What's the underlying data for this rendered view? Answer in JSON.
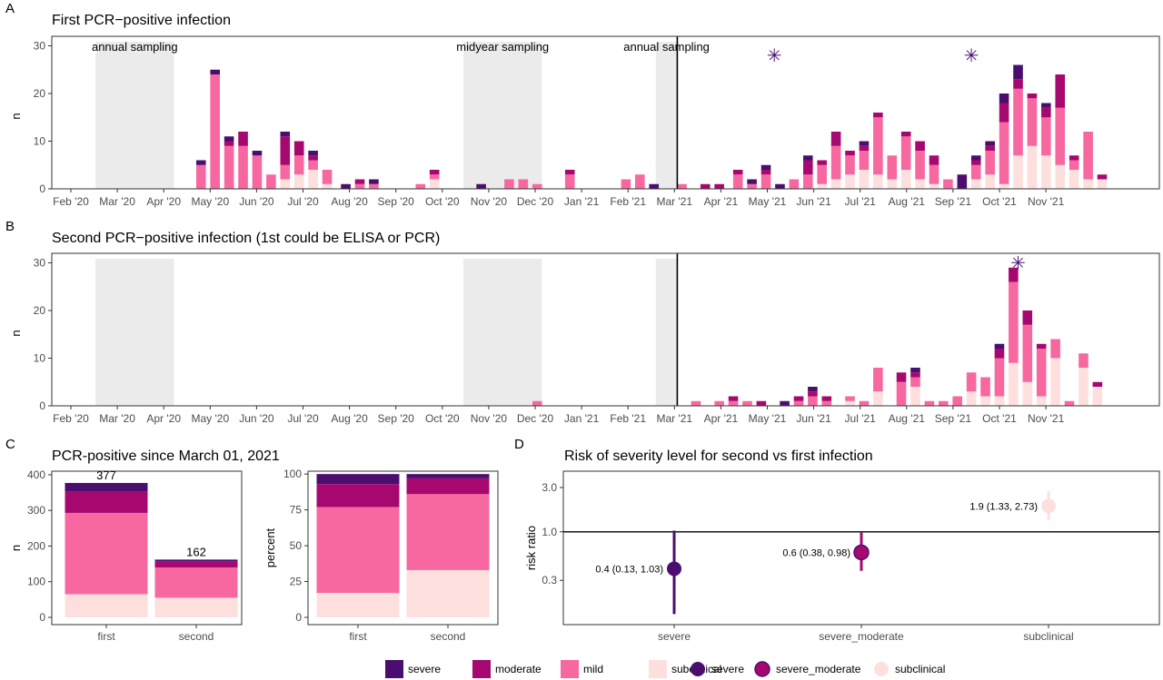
{
  "colors": {
    "severe": "#4a0f6e",
    "moderate": "#a6086f",
    "mild": "#f768a1",
    "subclinical": "#fde0dd",
    "shade": "#ebebeb",
    "border": "#333333",
    "grid": "#000000"
  },
  "severity_order": [
    "subclinical",
    "mild",
    "moderate",
    "severe"
  ],
  "legend": {
    "bars": [
      "severe",
      "moderate",
      "mild",
      "subclinical"
    ],
    "points": [
      "severe",
      "severe_moderate",
      "subclinical"
    ]
  },
  "chart_data": [
    {
      "id": "A",
      "type": "bar",
      "stacked": true,
      "panel_label": "A",
      "title": "First PCR−positive infection",
      "ylabel": "n",
      "xlabel": "",
      "ylim": [
        0,
        32
      ],
      "yticks": [
        0,
        10,
        20,
        30
      ],
      "x_ticks": [
        "Feb '20",
        "Mar '20",
        "Apr '20",
        "May '20",
        "Jun '20",
        "Jul '20",
        "Aug '20",
        "Sep '20",
        "Oct '20",
        "Nov '20",
        "Dec '20",
        "Jan '21",
        "Feb '21",
        "Mar '21",
        "Apr '21",
        "May '21",
        "Jun '21",
        "Jul '21",
        "Aug '21",
        "Sep '21",
        "Oct '21",
        "Nov '21"
      ],
      "x_unit": "week index (0 = week of Feb 1, 2020)",
      "shaded_periods": [
        {
          "start": 4.2,
          "end": 12.6,
          "label": "annual sampling"
        },
        {
          "start": 43.6,
          "end": 52,
          "label": "midyear sampling"
        },
        {
          "start": 64.2,
          "end": 66.5,
          "label": "annual sampling"
        }
      ],
      "vline": 66.5,
      "stars": [
        {
          "week": 76.9,
          "y": 28
        },
        {
          "week": 98,
          "y": 28
        }
      ],
      "bars": [
        {
          "week": 15.5,
          "subclinical": 0,
          "mild": 5,
          "moderate": 0,
          "severe": 1
        },
        {
          "week": 17,
          "subclinical": 0,
          "mild": 24,
          "moderate": 0,
          "severe": 1
        },
        {
          "week": 18.5,
          "subclinical": 0,
          "mild": 9,
          "moderate": 1,
          "severe": 1
        },
        {
          "week": 20,
          "subclinical": 0,
          "mild": 9,
          "moderate": 3,
          "severe": 0
        },
        {
          "week": 21.5,
          "subclinical": 0,
          "mild": 7,
          "moderate": 0,
          "severe": 1
        },
        {
          "week": 23,
          "subclinical": 0,
          "mild": 3,
          "moderate": 0,
          "severe": 0
        },
        {
          "week": 24.5,
          "subclinical": 2,
          "mild": 3,
          "moderate": 6,
          "severe": 1
        },
        {
          "week": 26,
          "subclinical": 3,
          "mild": 4,
          "moderate": 3,
          "severe": 0
        },
        {
          "week": 27.5,
          "subclinical": 4,
          "mild": 2,
          "moderate": 1,
          "severe": 1
        },
        {
          "week": 29,
          "subclinical": 1,
          "mild": 3,
          "moderate": 0,
          "severe": 0
        },
        {
          "week": 31,
          "subclinical": 0,
          "mild": 0,
          "moderate": 0,
          "severe": 1
        },
        {
          "week": 32.5,
          "subclinical": 0,
          "mild": 1,
          "moderate": 1,
          "severe": 0
        },
        {
          "week": 34,
          "subclinical": 0,
          "mild": 1,
          "moderate": 0,
          "severe": 1
        },
        {
          "week": 39,
          "subclinical": 0,
          "mild": 1,
          "moderate": 0,
          "severe": 0
        },
        {
          "week": 40.5,
          "subclinical": 2,
          "mild": 1,
          "moderate": 1,
          "severe": 0
        },
        {
          "week": 45.5,
          "subclinical": 0,
          "mild": 0,
          "moderate": 0,
          "severe": 1
        },
        {
          "week": 48.5,
          "subclinical": 0,
          "mild": 2,
          "moderate": 0,
          "severe": 0
        },
        {
          "week": 50,
          "subclinical": 0,
          "mild": 2,
          "moderate": 0,
          "severe": 0
        },
        {
          "week": 51.5,
          "subclinical": 0,
          "mild": 1,
          "moderate": 0,
          "severe": 0
        },
        {
          "week": 55,
          "subclinical": 0,
          "mild": 3,
          "moderate": 1,
          "severe": 0
        },
        {
          "week": 61,
          "subclinical": 0,
          "mild": 2,
          "moderate": 0,
          "severe": 0
        },
        {
          "week": 62.5,
          "subclinical": 0,
          "mild": 3,
          "moderate": 0,
          "severe": 0
        },
        {
          "week": 64,
          "subclinical": 0,
          "mild": 0,
          "moderate": 0,
          "severe": 1
        },
        {
          "week": 67,
          "subclinical": 0,
          "mild": 1,
          "moderate": 0,
          "severe": 0
        },
        {
          "week": 69.5,
          "subclinical": 0,
          "mild": 0,
          "moderate": 1,
          "severe": 0
        },
        {
          "week": 71,
          "subclinical": 0,
          "mild": 0,
          "moderate": 1,
          "severe": 0
        },
        {
          "week": 73,
          "subclinical": 0,
          "mild": 3,
          "moderate": 1,
          "severe": 0
        },
        {
          "week": 74.5,
          "subclinical": 0,
          "mild": 1,
          "moderate": 0,
          "severe": 1
        },
        {
          "week": 76,
          "subclinical": 0,
          "mild": 3,
          "moderate": 1,
          "severe": 1
        },
        {
          "week": 77.5,
          "subclinical": 0,
          "mild": 0,
          "moderate": 0,
          "severe": 1
        },
        {
          "week": 79,
          "subclinical": 0,
          "mild": 2,
          "moderate": 0,
          "severe": 0
        },
        {
          "week": 80.5,
          "subclinical": 0,
          "mild": 3,
          "moderate": 3,
          "severe": 1
        },
        {
          "week": 82,
          "subclinical": 1,
          "mild": 4,
          "moderate": 1,
          "severe": 0
        },
        {
          "week": 83.5,
          "subclinical": 2,
          "mild": 7,
          "moderate": 3,
          "severe": 0
        },
        {
          "week": 85,
          "subclinical": 3,
          "mild": 4,
          "moderate": 1,
          "severe": 0
        },
        {
          "week": 86.5,
          "subclinical": 4,
          "mild": 4,
          "moderate": 1,
          "severe": 1
        },
        {
          "week": 88,
          "subclinical": 3,
          "mild": 12,
          "moderate": 1,
          "severe": 0
        },
        {
          "week": 89.5,
          "subclinical": 2,
          "mild": 5,
          "moderate": 0,
          "severe": 0
        },
        {
          "week": 91,
          "subclinical": 4,
          "mild": 7,
          "moderate": 1,
          "severe": 0
        },
        {
          "week": 92.5,
          "subclinical": 2,
          "mild": 6,
          "moderate": 2,
          "severe": 0
        },
        {
          "week": 94,
          "subclinical": 1,
          "mild": 4,
          "moderate": 2,
          "severe": 0
        },
        {
          "week": 95.5,
          "subclinical": 0,
          "mild": 2,
          "moderate": 0,
          "severe": 0
        },
        {
          "week": 97,
          "subclinical": 0,
          "mild": 0,
          "moderate": 0,
          "severe": 3
        },
        {
          "week": 98.5,
          "subclinical": 2,
          "mild": 3,
          "moderate": 1,
          "severe": 1
        },
        {
          "week": 100,
          "subclinical": 3,
          "mild": 5,
          "moderate": 1,
          "severe": 1
        },
        {
          "week": 101.5,
          "subclinical": 1,
          "mild": 13,
          "moderate": 4,
          "severe": 2
        },
        {
          "week": 103,
          "subclinical": 7,
          "mild": 14,
          "moderate": 2,
          "severe": 3
        },
        {
          "week": 104.5,
          "subclinical": 9,
          "mild": 10,
          "moderate": 1,
          "severe": 0
        },
        {
          "week": 106,
          "subclinical": 7,
          "mild": 8,
          "moderate": 2,
          "severe": 1
        },
        {
          "week": 107.5,
          "subclinical": 5,
          "mild": 12,
          "moderate": 7,
          "severe": 0
        },
        {
          "week": 109,
          "subclinical": 4,
          "mild": 2,
          "moderate": 1,
          "severe": 0
        },
        {
          "week": 110.5,
          "subclinical": 2,
          "mild": 10,
          "moderate": 0,
          "severe": 0
        },
        {
          "week": 112,
          "subclinical": 2,
          "mild": 0,
          "moderate": 1,
          "severe": 0
        }
      ]
    },
    {
      "id": "B",
      "type": "bar",
      "stacked": true,
      "panel_label": "B",
      "title": "Second PCR−positive infection (1st could be ELISA or PCR)",
      "ylabel": "n",
      "xlabel": "",
      "ylim": [
        0,
        32
      ],
      "yticks": [
        0,
        10,
        20,
        30
      ],
      "x_ticks": [
        "Feb '20",
        "Mar '20",
        "Apr '20",
        "May '20",
        "Jun '20",
        "Jul '20",
        "Aug '20",
        "Sep '20",
        "Oct '20",
        "Nov '20",
        "Dec '20",
        "Jan '21",
        "Feb '21",
        "Mar '21",
        "Apr '21",
        "May '21",
        "Jun '21",
        "Jul '21",
        "Aug '21",
        "Sep '21",
        "Oct '21",
        "Nov '21"
      ],
      "x_unit": "week index (0 = week of Feb 1, 2020)",
      "shaded_periods": [
        {
          "start": 4.2,
          "end": 12.6,
          "label": ""
        },
        {
          "start": 43.6,
          "end": 52,
          "label": ""
        },
        {
          "start": 64.2,
          "end": 66.5,
          "label": ""
        }
      ],
      "vline": 66.5,
      "stars": [
        {
          "week": 103,
          "y": 30
        }
      ],
      "bars": [
        {
          "week": 51.5,
          "subclinical": 0,
          "mild": 1,
          "moderate": 0,
          "severe": 0
        },
        {
          "week": 68.5,
          "subclinical": 0,
          "mild": 1,
          "moderate": 0,
          "severe": 0
        },
        {
          "week": 71,
          "subclinical": 0,
          "mild": 1,
          "moderate": 0,
          "severe": 0
        },
        {
          "week": 72.5,
          "subclinical": 0,
          "mild": 1,
          "moderate": 1,
          "severe": 0
        },
        {
          "week": 74,
          "subclinical": 0,
          "mild": 1,
          "moderate": 0,
          "severe": 0
        },
        {
          "week": 75.5,
          "subclinical": 0,
          "mild": 0,
          "moderate": 1,
          "severe": 0
        },
        {
          "week": 78,
          "subclinical": 0,
          "mild": 0,
          "moderate": 0,
          "severe": 1
        },
        {
          "week": 79.5,
          "subclinical": 0,
          "mild": 1,
          "moderate": 1,
          "severe": 0
        },
        {
          "week": 81,
          "subclinical": 0,
          "mild": 2,
          "moderate": 1,
          "severe": 1
        },
        {
          "week": 82.5,
          "subclinical": 0,
          "mild": 1,
          "moderate": 1,
          "severe": 0
        },
        {
          "week": 85,
          "subclinical": 1,
          "mild": 1,
          "moderate": 0,
          "severe": 0
        },
        {
          "week": 86.5,
          "subclinical": 0,
          "mild": 1,
          "moderate": 0,
          "severe": 0
        },
        {
          "week": 88,
          "subclinical": 3,
          "mild": 5,
          "moderate": 0,
          "severe": 0
        },
        {
          "week": 90.5,
          "subclinical": 0,
          "mild": 5,
          "moderate": 2,
          "severe": 0
        },
        {
          "week": 92,
          "subclinical": 4,
          "mild": 2,
          "moderate": 1,
          "severe": 1
        },
        {
          "week": 93.5,
          "subclinical": 0,
          "mild": 1,
          "moderate": 0,
          "severe": 0
        },
        {
          "week": 95,
          "subclinical": 0,
          "mild": 1,
          "moderate": 0,
          "severe": 0
        },
        {
          "week": 96.5,
          "subclinical": 0,
          "mild": 2,
          "moderate": 0,
          "severe": 0
        },
        {
          "week": 98,
          "subclinical": 3,
          "mild": 4,
          "moderate": 0,
          "severe": 0
        },
        {
          "week": 99.5,
          "subclinical": 2,
          "mild": 4,
          "moderate": 0,
          "severe": 0
        },
        {
          "week": 101,
          "subclinical": 2,
          "mild": 8,
          "moderate": 2,
          "severe": 1
        },
        {
          "week": 102.5,
          "subclinical": 9,
          "mild": 17,
          "moderate": 3,
          "severe": 0
        },
        {
          "week": 104,
          "subclinical": 5,
          "mild": 12,
          "moderate": 3,
          "severe": 0
        },
        {
          "week": 105.5,
          "subclinical": 2,
          "mild": 10,
          "moderate": 1,
          "severe": 0
        },
        {
          "week": 107,
          "subclinical": 10,
          "mild": 4,
          "moderate": 0,
          "severe": 0
        },
        {
          "week": 108.5,
          "subclinical": 0,
          "mild": 1,
          "moderate": 0,
          "severe": 0
        },
        {
          "week": 110,
          "subclinical": 8,
          "mild": 3,
          "moderate": 0,
          "severe": 0
        },
        {
          "week": 111.5,
          "subclinical": 4,
          "mild": 0,
          "moderate": 1,
          "severe": 0
        }
      ]
    },
    {
      "id": "C1",
      "type": "bar",
      "stacked": true,
      "panel_label": "C",
      "title": "PCR-positive since March 01, 2021",
      "ylabel": "n",
      "xlabel": "",
      "ylim": [
        0,
        410
      ],
      "yticks": [
        0,
        100,
        200,
        300,
        400
      ],
      "categories": [
        "first",
        "second"
      ],
      "totals": [
        "377",
        "162"
      ],
      "series": [
        {
          "name": "subclinical",
          "values": [
            65,
            55
          ]
        },
        {
          "name": "mild",
          "values": [
            228,
            85
          ]
        },
        {
          "name": "moderate",
          "values": [
            60,
            17
          ]
        },
        {
          "name": "severe",
          "values": [
            24,
            5
          ]
        }
      ]
    },
    {
      "id": "C2",
      "type": "bar",
      "stacked": true,
      "title": "",
      "ylabel": "percent",
      "xlabel": "",
      "ylim": [
        0,
        102
      ],
      "yticks": [
        0,
        25,
        50,
        75,
        100
      ],
      "categories": [
        "first",
        "second"
      ],
      "series": [
        {
          "name": "subclinical",
          "values": [
            17,
            33
          ]
        },
        {
          "name": "mild",
          "values": [
            60,
            53
          ]
        },
        {
          "name": "moderate",
          "values": [
            16,
            11
          ]
        },
        {
          "name": "severe",
          "values": [
            7,
            3
          ]
        }
      ]
    },
    {
      "id": "D",
      "type": "scatter",
      "panel_label": "D",
      "title": "Risk of severity level for second vs first infection",
      "ylabel": "risk ratio",
      "xlabel": "",
      "y_scale": "log",
      "ylim": [
        0.1,
        4.5
      ],
      "yticks": [
        0.3,
        1.0,
        3.0
      ],
      "ytick_labels": [
        "0.3",
        "1.0",
        "3.0"
      ],
      "hline": 1.0,
      "categories": [
        "severe",
        "severe_moderate",
        "subclinical"
      ],
      "points": [
        {
          "category": "severe",
          "value": 0.4,
          "low": 0.13,
          "high": 1.03,
          "label": "0.4 (0.13, 1.03)"
        },
        {
          "category": "severe_moderate",
          "value": 0.6,
          "low": 0.38,
          "high": 0.98,
          "label": "0.6 (0.38, 0.98)"
        },
        {
          "category": "subclinical",
          "value": 1.9,
          "low": 1.33,
          "high": 2.73,
          "label": "1.9 (1.33, 2.73)"
        }
      ],
      "point_colors": {
        "severe": "#4a0f6e",
        "severe_moderate": "#a6086f",
        "subclinical": "#fde0dd"
      }
    }
  ]
}
